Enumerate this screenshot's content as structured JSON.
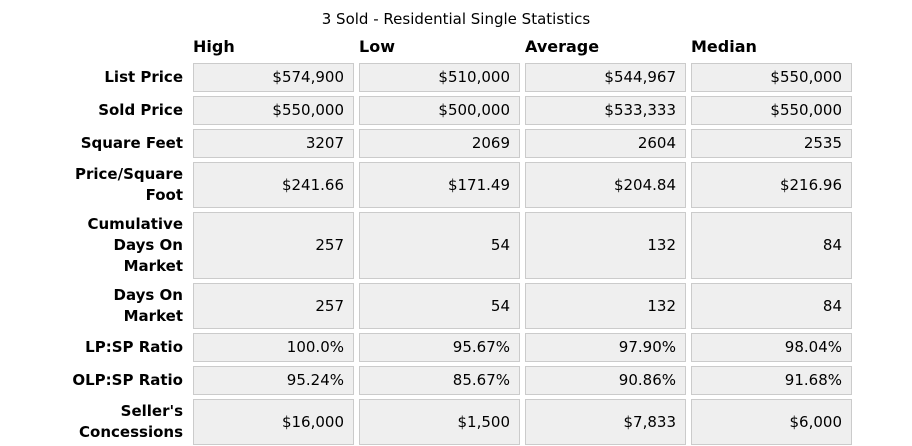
{
  "title": "3 Sold - Residential Single Statistics",
  "columns": [
    "High",
    "Low",
    "Average",
    "Median"
  ],
  "rows": [
    {
      "label": "List Price",
      "values": [
        "$574,900",
        "$510,000",
        "$544,967",
        "$550,000"
      ]
    },
    {
      "label": "Sold Price",
      "values": [
        "$550,000",
        "$500,000",
        "$533,333",
        "$550,000"
      ]
    },
    {
      "label": "Square Feet",
      "values": [
        "3207",
        "2069",
        "2604",
        "2535"
      ]
    },
    {
      "label": "Price/Square\nFoot",
      "values": [
        "$241.66",
        "$171.49",
        "$204.84",
        "$216.96"
      ]
    },
    {
      "label": "Cumulative\nDays On\nMarket",
      "values": [
        "257",
        "54",
        "132",
        "84"
      ]
    },
    {
      "label": "Days On\nMarket",
      "values": [
        "257",
        "54",
        "132",
        "84"
      ]
    },
    {
      "label": "LP:SP Ratio",
      "values": [
        "100.0%",
        "95.67%",
        "97.90%",
        "98.04%"
      ]
    },
    {
      "label": "OLP:SP Ratio",
      "values": [
        "95.24%",
        "85.67%",
        "90.86%",
        "91.68%"
      ]
    },
    {
      "label": "Seller's\nConcessions",
      "values": [
        "$16,000",
        "$1,500",
        "$7,833",
        "$6,000"
      ]
    }
  ],
  "colors": {
    "page_bg": "#ffffff",
    "cell_bg": "#efefef",
    "cell_border": "#cbcbcb",
    "text": "#000000"
  }
}
